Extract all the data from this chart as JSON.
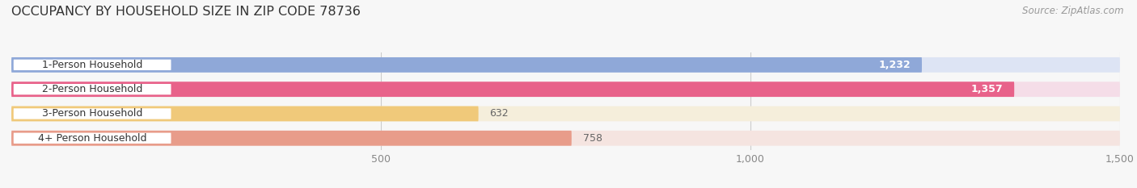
{
  "title": "OCCUPANCY BY HOUSEHOLD SIZE IN ZIP CODE 78736",
  "source": "Source: ZipAtlas.com",
  "categories": [
    "1-Person Household",
    "2-Person Household",
    "3-Person Household",
    "4+ Person Household"
  ],
  "values": [
    1232,
    1357,
    632,
    758
  ],
  "bar_colors": [
    "#8fa8d8",
    "#e8628a",
    "#f0c97a",
    "#e89c8a"
  ],
  "bar_bg_colors": [
    "#dde4f4",
    "#f5dde8",
    "#f5eedb",
    "#f5e4e0"
  ],
  "xlim": [
    0,
    1500
  ],
  "xticks": [
    500,
    1000,
    1500
  ],
  "label_colors": [
    "white",
    "white",
    "#666666",
    "#666666"
  ],
  "background_color": "#f7f7f7",
  "title_fontsize": 11.5,
  "source_fontsize": 8.5,
  "bar_label_fontsize": 9,
  "cat_label_fontsize": 9,
  "tick_fontsize": 9
}
